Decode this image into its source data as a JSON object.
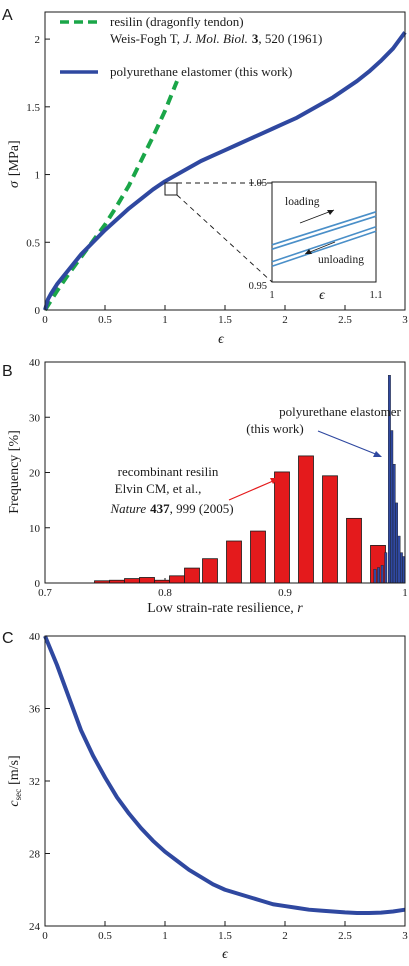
{
  "colors": {
    "polyurethane": "#2f48a0",
    "resilin": "#1aa648",
    "histogram_red": "#e41a1c",
    "histogram_blue": "#2f48a0",
    "inset_curves": "#4a8fc8",
    "axis": "#1a1a1a"
  },
  "panels": {
    "A": {
      "letter": "A"
    },
    "B": {
      "letter": "B"
    },
    "C": {
      "letter": "C"
    }
  },
  "chart_data": [
    {
      "id": "A",
      "type": "line",
      "xlabel": "ϵ",
      "ylabel": "σ",
      "ylabel_unit": "[MPa]",
      "xlim": [
        0,
        3
      ],
      "ylim": [
        0,
        2.2
      ],
      "xticks": [
        "0",
        "0.5",
        "1",
        "1.5",
        "2",
        "2.5",
        "3"
      ],
      "yticks": [
        "0",
        "0.5",
        "1",
        "1.5",
        "2"
      ],
      "legend": [
        {
          "line1": "resilin (dragonfly tendon)",
          "line2_a": "Weis-Fogh T, ",
          "line2_journal": "J. Mol. Biol.",
          "line2_volume": "3",
          "line2_b": ", 520 (1961)",
          "style": "dashed"
        },
        {
          "line1": "polyurethane elastomer (this work)",
          "style": "solid"
        }
      ],
      "series": [
        {
          "name": "polyurethane elastomer (this work)",
          "x": [
            0,
            0.025,
            0.05,
            0.1,
            0.2,
            0.3,
            0.4,
            0.5,
            0.6,
            0.7,
            0.8,
            0.9,
            1.0,
            1.1,
            1.2,
            1.3,
            1.4,
            1.5,
            1.6,
            1.7,
            1.8,
            1.9,
            2.0,
            2.1,
            2.2,
            2.3,
            2.4,
            2.5,
            2.6,
            2.7,
            2.8,
            2.9,
            3.0
          ],
          "y": [
            0,
            0.08,
            0.12,
            0.19,
            0.3,
            0.41,
            0.5,
            0.59,
            0.67,
            0.75,
            0.82,
            0.89,
            0.95,
            1.0,
            1.05,
            1.1,
            1.14,
            1.18,
            1.22,
            1.26,
            1.3,
            1.34,
            1.38,
            1.42,
            1.47,
            1.52,
            1.57,
            1.63,
            1.69,
            1.76,
            1.84,
            1.93,
            2.05
          ]
        },
        {
          "name": "resilin (dragonfly tendon)",
          "x": [
            0,
            0.05,
            0.1,
            0.2,
            0.3,
            0.4,
            0.5,
            0.6,
            0.7,
            0.8,
            0.9,
            1.0,
            1.1
          ],
          "y": [
            0,
            0.07,
            0.14,
            0.27,
            0.39,
            0.51,
            0.63,
            0.77,
            0.92,
            1.1,
            1.28,
            1.47,
            1.69
          ]
        }
      ],
      "inset": {
        "xlim": [
          1,
          1.1
        ],
        "ylim": [
          0.95,
          1.05
        ],
        "xticks": [
          "1",
          "1.1"
        ],
        "yticks": [
          "0.95",
          "1.05"
        ],
        "xlabel": "ϵ",
        "loading_label": "loading",
        "unloading_label": "unloading",
        "loading": {
          "x": [
            1.0,
            1.1
          ],
          "y": [
            0.985,
            1.018
          ]
        },
        "unloading": {
          "x": [
            1.0,
            1.1
          ],
          "y": [
            0.968,
            1.003
          ]
        }
      }
    },
    {
      "id": "B",
      "type": "bar",
      "xlabel": "Low strain-rate resilience, ",
      "xlabel_var": "r",
      "ylabel": "Frequency [%]",
      "xlim": [
        0.7,
        1.0
      ],
      "ylim": [
        0,
        40
      ],
      "xticks": [
        "0.7",
        "0.8",
        "0.9",
        "1"
      ],
      "yticks": [
        "0",
        "10",
        "20",
        "30",
        "40"
      ],
      "series": [
        {
          "name": "recombinant resilin",
          "bin_width": 0.0125,
          "x": [
            0.7475,
            0.76,
            0.7725,
            0.785,
            0.7975,
            0.81,
            0.8225,
            0.8375,
            0.8575,
            0.8775,
            0.8975,
            0.9175,
            0.9375,
            0.9575,
            0.9775
          ],
          "values": [
            0.4,
            0.5,
            0.8,
            1.0,
            0.5,
            1.3,
            2.7,
            4.4,
            7.6,
            9.4,
            20.1,
            23.0,
            19.4,
            11.7,
            6.8
          ],
          "widths": [
            0.0125,
            0.0125,
            0.0125,
            0.0125,
            0.0125,
            0.0125,
            0.0125,
            0.0125,
            0.0125,
            0.0125,
            0.0125,
            0.0125,
            0.0125,
            0.0125,
            0.0125
          ]
        },
        {
          "name": "polyurethane elastomer",
          "x": [
            0.975,
            0.978,
            0.981,
            0.984,
            0.987,
            0.989,
            0.991,
            0.993,
            0.995,
            0.997,
            0.999
          ],
          "values": [
            2.5,
            2.8,
            3.2,
            5.5,
            37.6,
            27.6,
            21.5,
            14.5,
            8.5,
            5.5,
            4.8
          ],
          "widths": [
            0.002,
            0.002,
            0.002,
            0.002,
            0.002,
            0.002,
            0.002,
            0.002,
            0.002,
            0.002,
            0.002
          ]
        }
      ],
      "annotations": {
        "blue": {
          "line1": "polyurethane elastomer",
          "line2": "(this work)"
        },
        "red": {
          "line1": "recombinant resilin",
          "line2": "Elvin CM, et al.,",
          "line3_journal": "Nature",
          "line3_volume": "437",
          "line3_rest": ", 999 (2005)"
        }
      }
    },
    {
      "id": "C",
      "type": "line",
      "xlabel": "ϵ",
      "ylabel_var": "c",
      "ylabel_sub": "sec",
      "ylabel_unit": "[m/s]",
      "xlim": [
        0,
        3
      ],
      "ylim": [
        24,
        40
      ],
      "xticks": [
        "0",
        "0.5",
        "1",
        "1.5",
        "2",
        "2.5",
        "3"
      ],
      "yticks": [
        "24",
        "28",
        "32",
        "36",
        "40"
      ],
      "series": [
        {
          "name": "c_sec",
          "x": [
            0,
            0.1,
            0.2,
            0.3,
            0.4,
            0.5,
            0.6,
            0.7,
            0.8,
            0.9,
            1.0,
            1.1,
            1.2,
            1.3,
            1.4,
            1.5,
            1.6,
            1.7,
            1.8,
            1.9,
            2.0,
            2.1,
            2.2,
            2.3,
            2.4,
            2.5,
            2.6,
            2.7,
            2.8,
            2.9,
            3.0
          ],
          "y": [
            40.0,
            38.4,
            36.6,
            34.8,
            33.4,
            32.2,
            31.1,
            30.2,
            29.4,
            28.7,
            28.1,
            27.6,
            27.1,
            26.7,
            26.3,
            26.0,
            25.8,
            25.6,
            25.4,
            25.2,
            25.1,
            25.0,
            24.9,
            24.85,
            24.8,
            24.75,
            24.72,
            24.72,
            24.74,
            24.8,
            24.9
          ]
        }
      ]
    }
  ]
}
